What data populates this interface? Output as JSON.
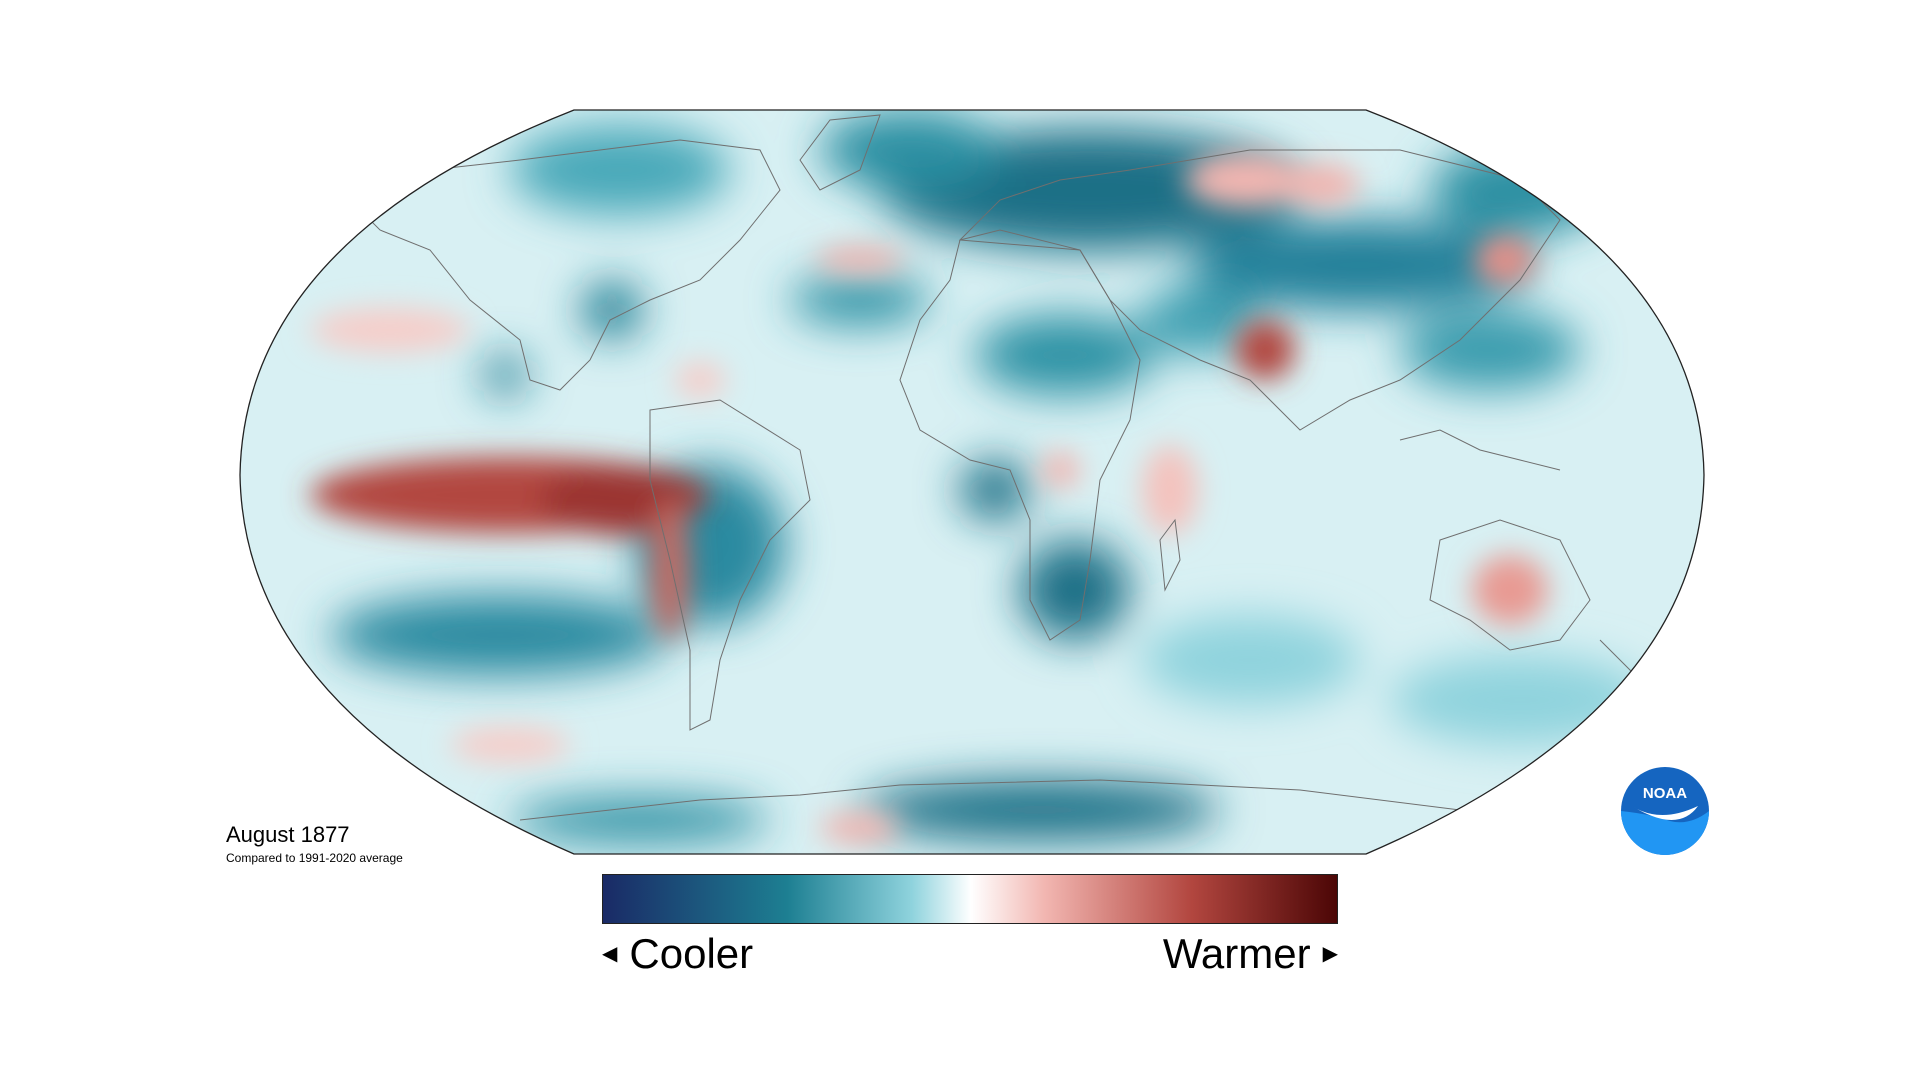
{
  "map": {
    "projection": "Robinson",
    "caption_title": "August 1877",
    "caption_subtitle": "Compared to 1991-2020 average"
  },
  "legend": {
    "cooler_label": "Cooler",
    "warmer_label": "Warmer",
    "colors": {
      "coldest": "#1a2a66",
      "cool": "#1d7f92",
      "cool_light": "#8fd3dd",
      "neutral": "#ffffff",
      "warm_light": "#f2b6b1",
      "warm": "#b2463f",
      "warmest": "#4a0505"
    }
  },
  "logo": {
    "name": "noaa-logo",
    "text": "NOAA",
    "color": "#1565c0"
  },
  "icons": [
    "triangle-left-icon",
    "triangle-right-icon"
  ]
}
